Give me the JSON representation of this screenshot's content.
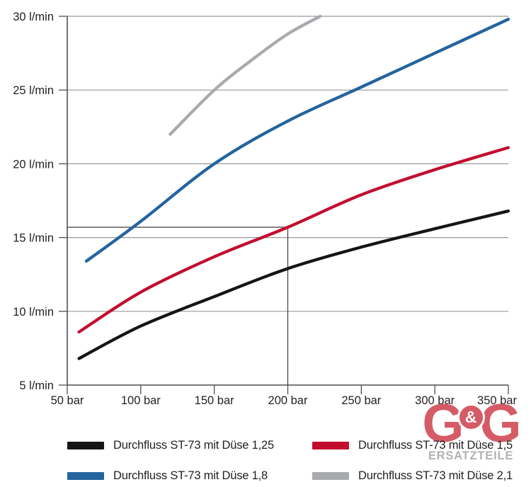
{
  "chart_data": {
    "type": "line",
    "xlabel_unit": "bar",
    "ylabel_unit": "l/min",
    "xlim": [
      50,
      350
    ],
    "ylim": [
      5,
      30
    ],
    "x_ticks": [
      50,
      100,
      150,
      200,
      250,
      300,
      350
    ],
    "x_tick_labels": [
      "50 bar",
      "100 bar",
      "150 bar",
      "200 bar",
      "250 bar",
      "300 bar",
      "350 bar"
    ],
    "y_ticks": [
      30,
      25,
      20,
      15,
      10,
      5
    ],
    "y_tick_labels": [
      "30 l/min",
      "25 l/min",
      "20 l/min",
      "15 l/min",
      "10 l/min",
      "5 l/min"
    ],
    "grid": "horizontal",
    "legend_position": "bottom",
    "series": [
      {
        "id": "duese-1-25",
        "name": "Durchfluss ST-73 mit Düse 1,25",
        "color": "#151515",
        "points": [
          [
            58,
            6.8
          ],
          [
            100,
            9.0
          ],
          [
            150,
            11.0
          ],
          [
            200,
            12.9
          ],
          [
            250,
            14.35
          ],
          [
            300,
            15.6
          ],
          [
            350,
            16.8
          ]
        ]
      },
      {
        "id": "duese-1-5",
        "name": "Durchfluss ST-73 mit Düse 1,5",
        "color": "#c20e2e",
        "points": [
          [
            58,
            8.6
          ],
          [
            100,
            11.3
          ],
          [
            150,
            13.7
          ],
          [
            200,
            15.7
          ],
          [
            250,
            17.9
          ],
          [
            300,
            19.6
          ],
          [
            350,
            21.1
          ]
        ]
      },
      {
        "id": "duese-1-8",
        "name": "Durchfluss ST-73 mit Düse 1,8",
        "color": "#23649f",
        "points": [
          [
            63,
            13.4
          ],
          [
            100,
            16.1
          ],
          [
            150,
            20.0
          ],
          [
            200,
            22.9
          ],
          [
            250,
            25.2
          ],
          [
            300,
            27.5
          ],
          [
            350,
            29.8
          ]
        ]
      },
      {
        "id": "duese-2-1",
        "name": "Durchfluss ST-73 mit Düse 2,1",
        "color": "#a8aaad",
        "points": [
          [
            120,
            22.0
          ],
          [
            150,
            25.0
          ],
          [
            175,
            27.0
          ],
          [
            200,
            28.8
          ],
          [
            222,
            30.0
          ]
        ]
      }
    ],
    "crosshair": {
      "x": 200,
      "y": 15.7
    }
  },
  "legend": {
    "items": [
      {
        "id": "duese-1-25",
        "label": "Durchfluss ST-73 mit Düse 1,25",
        "color": "#151515"
      },
      {
        "id": "duese-1-5",
        "label": "Durchfluss ST-73 mit Düse 1,5",
        "color": "#c20e2e"
      },
      {
        "id": "duese-1-8",
        "label": "Durchfluss ST-73 mit Düse 1,8",
        "color": "#23649f"
      },
      {
        "id": "duese-2-1",
        "label": "Durchfluss ST-73 mit Düse 2,1",
        "color": "#a8aaad"
      }
    ]
  },
  "logo": {
    "g1": "G",
    "amp": "&",
    "g2": "G",
    "subtitle": "ERSATZTEILE",
    "red": "#d04551",
    "gray": "#a6a8ab"
  },
  "colors": {
    "background": "#ffffff",
    "grid": "#97999c",
    "axis": "#4f5052",
    "crosshair": "#3c3d3f",
    "text": "#231f20"
  }
}
